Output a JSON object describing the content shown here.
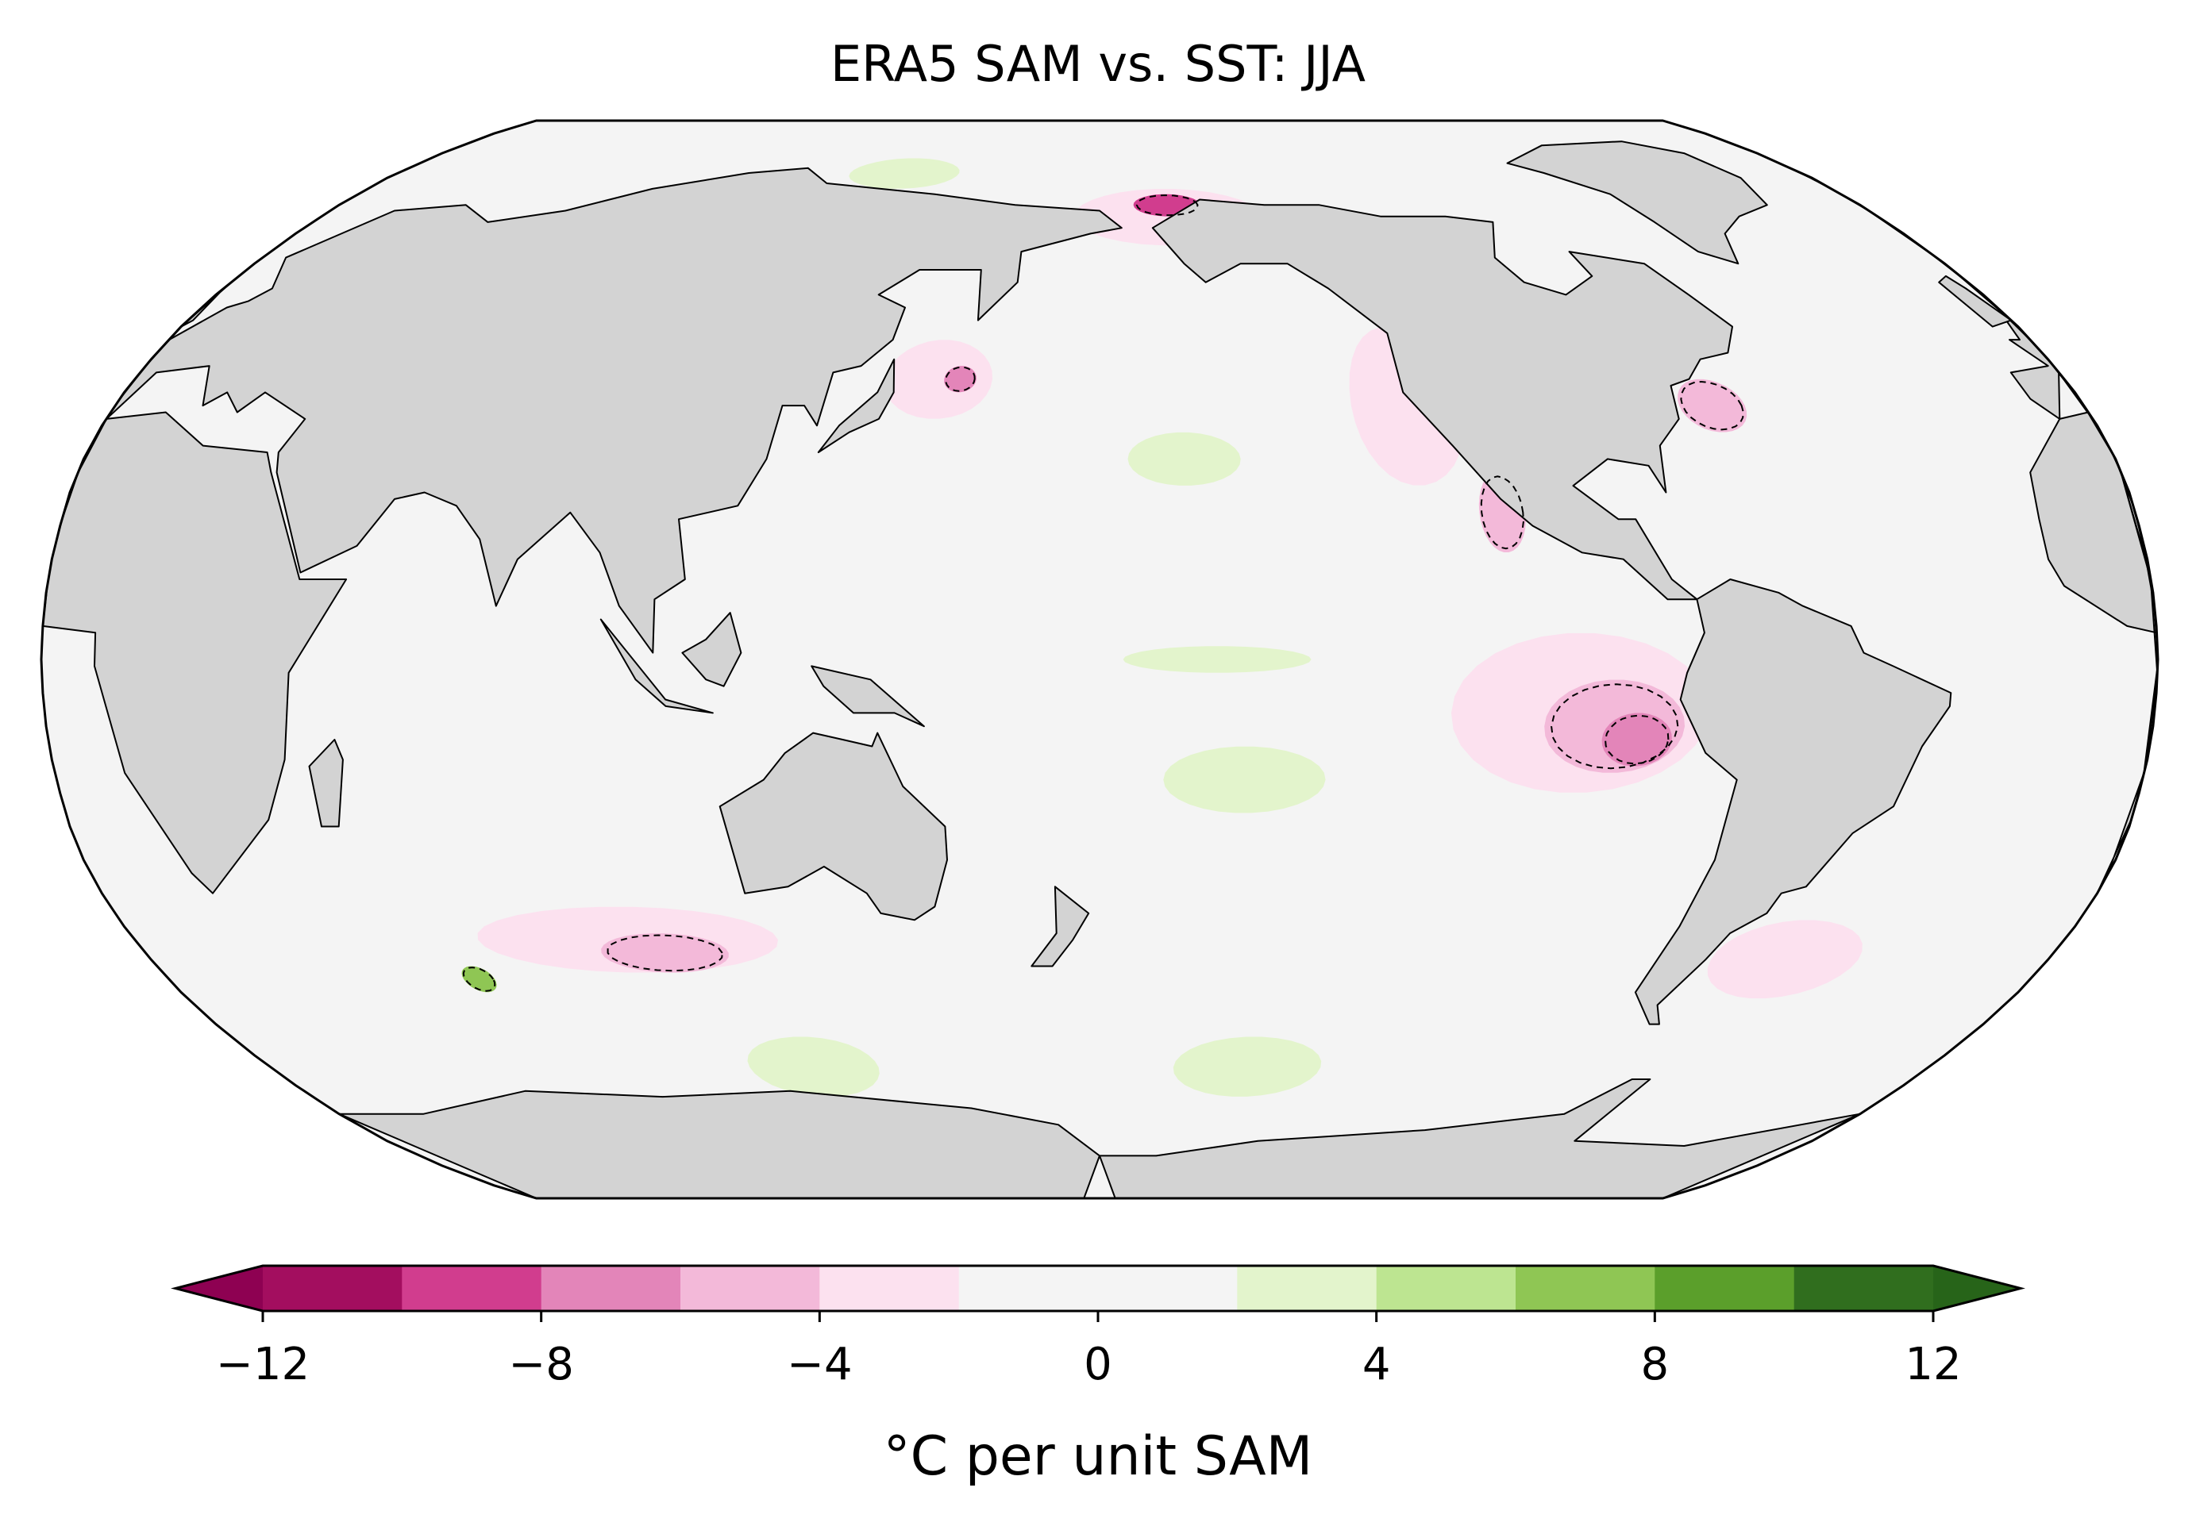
{
  "title": "ERA5 SAM vs. SST: JJA",
  "map": {
    "projection": "robinson",
    "central_longitude": 180,
    "land_color": "#d3d3d3",
    "ocean_base_color": "#f4f4f4",
    "coastline_color": "#000000",
    "significance_contour_style": "dashed"
  },
  "colorbar": {
    "label": "°C per unit SAM",
    "levels": [
      -12,
      -10,
      -8,
      -6,
      -4,
      -2,
      0,
      2,
      4,
      6,
      8,
      10,
      12
    ],
    "colors": [
      "#a30e5f",
      "#d13d8e",
      "#e385b9",
      "#f3b9d9",
      "#fce1ef",
      "#f4f4f4",
      "#f4f4f4",
      "#e3f4cc",
      "#bde591",
      "#8fc654",
      "#5b9f2b",
      "#306e1e"
    ],
    "under_color": "#8e0152",
    "over_color": "#276419",
    "extend": "both",
    "ticks": [
      "−12",
      "−8",
      "−4",
      "0",
      "4",
      "8",
      "12"
    ],
    "tick_values": [
      -12,
      -8,
      -4,
      0,
      4,
      8,
      12
    ]
  },
  "anomaly_patches": [
    {
      "lon": 262,
      "lat": -8,
      "rx": 22,
      "ry": 12,
      "value": -3
    },
    {
      "lon": 268,
      "lat": -10,
      "rx": 12,
      "ry": 7,
      "value": -5
    },
    {
      "lon": 272,
      "lat": -12,
      "rx": 6,
      "ry": 4,
      "value": -7
    },
    {
      "lon": 236,
      "lat": 38,
      "rx": 10,
      "ry": 12,
      "value": -3
    },
    {
      "lon": 150,
      "lat": 42,
      "rx": 10,
      "ry": 6,
      "value": -3
    },
    {
      "lon": 154,
      "lat": 42,
      "rx": 3,
      "ry": 2,
      "value": -7
    },
    {
      "lon": 196,
      "lat": 68,
      "rx": 22,
      "ry": 5,
      "value": -3
    },
    {
      "lon": 196,
      "lat": 70,
      "rx": 8,
      "ry": 2,
      "value": -9
    },
    {
      "lon": 292,
      "lat": 38,
      "rx": 6,
      "ry": 4,
      "value": -5
    },
    {
      "lon": 250,
      "lat": 22,
      "rx": 4,
      "ry": 6,
      "value": -5
    },
    {
      "lon": 92,
      "lat": -42,
      "rx": 28,
      "ry": 5,
      "value": -3
    },
    {
      "lon": 98,
      "lat": -44,
      "rx": 12,
      "ry": 3,
      "value": -5
    },
    {
      "lon": 310,
      "lat": -45,
      "rx": 14,
      "ry": 6,
      "value": -3
    },
    {
      "lon": 195,
      "lat": 30,
      "rx": 10,
      "ry": 4,
      "value": 3
    },
    {
      "lon": 130,
      "lat": 76,
      "rx": 14,
      "ry": 3,
      "value": 3
    },
    {
      "lon": 200,
      "lat": 0,
      "rx": 16,
      "ry": 2,
      "value": 3
    },
    {
      "lon": 205,
      "lat": -18,
      "rx": 14,
      "ry": 5,
      "value": 3
    },
    {
      "lon": 212,
      "lat": -62,
      "rx": 16,
      "ry": 5,
      "value": 3
    },
    {
      "lon": 118,
      "lat": -62,
      "rx": 14,
      "ry": 5,
      "value": 3
    },
    {
      "lon": 60,
      "lat": -48,
      "rx": 3,
      "ry": 2,
      "value": 7
    }
  ]
}
